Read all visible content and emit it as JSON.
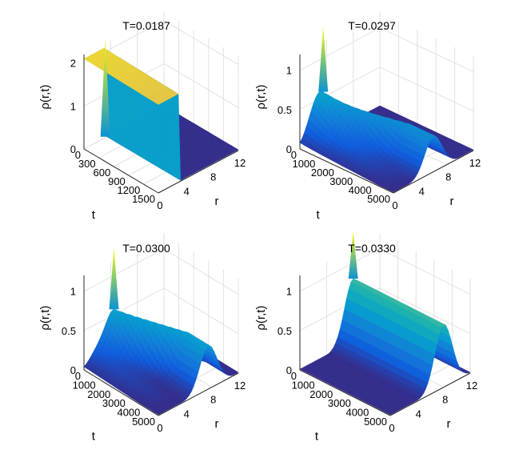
{
  "chart_data": [
    {
      "type": "surface",
      "title": "T=0.0187",
      "xlabel": "t",
      "ylabel": "r",
      "zlabel": "ρ(r,t)",
      "t_ticks": [
        "0",
        "300",
        "600",
        "900",
        "1200",
        "1500"
      ],
      "r_ticks": [
        "0",
        "4",
        "8",
        "12"
      ],
      "z_ticks": [
        "0",
        "1",
        "2"
      ],
      "t_range": [
        0,
        1500
      ],
      "r_range": [
        0,
        12
      ],
      "z_range": [
        0,
        2.2
      ],
      "profile": {
        "kind": "plateau",
        "r_edge": 3.0,
        "height": 2.1
      },
      "peak": {
        "t": 0,
        "r": 3.2,
        "z": 2.3
      }
    },
    {
      "type": "surface",
      "title": "T=0.0297",
      "xlabel": "t",
      "ylabel": "r",
      "zlabel": "ρ(r,t)",
      "t_ticks": [
        "0",
        "1000",
        "2000",
        "3000",
        "4000",
        "5000"
      ],
      "r_ticks": [
        "0",
        "4",
        "8",
        "12"
      ],
      "z_ticks": [
        "0",
        "0.5",
        "1"
      ],
      "t_range": [
        0,
        5000
      ],
      "r_range": [
        0,
        12
      ],
      "z_range": [
        0,
        1.2
      ],
      "profile": {
        "kind": "ring",
        "r_center_start": 3.5,
        "r_center_end": 6.0,
        "height": 0.45,
        "bump_decay": 1.0
      },
      "peak": {
        "t": 0,
        "r": 3.5,
        "z": 1.4
      }
    },
    {
      "type": "surface",
      "title": "T=0.0300",
      "xlabel": "t",
      "ylabel": "r",
      "zlabel": "ρ(r,t)",
      "t_ticks": [
        "0",
        "1000",
        "2000",
        "3000",
        "4000",
        "5000"
      ],
      "r_ticks": [
        "0",
        "4",
        "8",
        "12"
      ],
      "z_ticks": [
        "0",
        "0.5",
        "1"
      ],
      "t_range": [
        0,
        5000
      ],
      "r_range": [
        0,
        12
      ],
      "z_range": [
        0,
        1.2
      ],
      "profile": {
        "kind": "ring",
        "r_center_start": 4.5,
        "r_center_end": 7.5,
        "height": 0.55,
        "bump_decay": 0.6
      },
      "peak": {
        "t": 0,
        "r": 4.5,
        "z": 1.35
      }
    },
    {
      "type": "surface",
      "title": "T=0.0330",
      "xlabel": "t",
      "ylabel": "r",
      "zlabel": "ρ(r,t)",
      "t_ticks": [
        "0",
        "1000",
        "2000",
        "3000",
        "4000",
        "5000"
      ],
      "r_ticks": [
        "0",
        "4",
        "8",
        "12"
      ],
      "z_ticks": [
        "0",
        "0.5",
        "1"
      ],
      "t_range": [
        0,
        5000
      ],
      "r_range": [
        0,
        12
      ],
      "z_range": [
        0,
        1.2
      ],
      "profile": {
        "kind": "ring",
        "r_center_start": 8.0,
        "r_center_end": 8.0,
        "height": 0.8,
        "bump_decay": 0.0
      },
      "peak": {
        "t": 0,
        "r": 8.0,
        "z": 1.4
      }
    }
  ]
}
